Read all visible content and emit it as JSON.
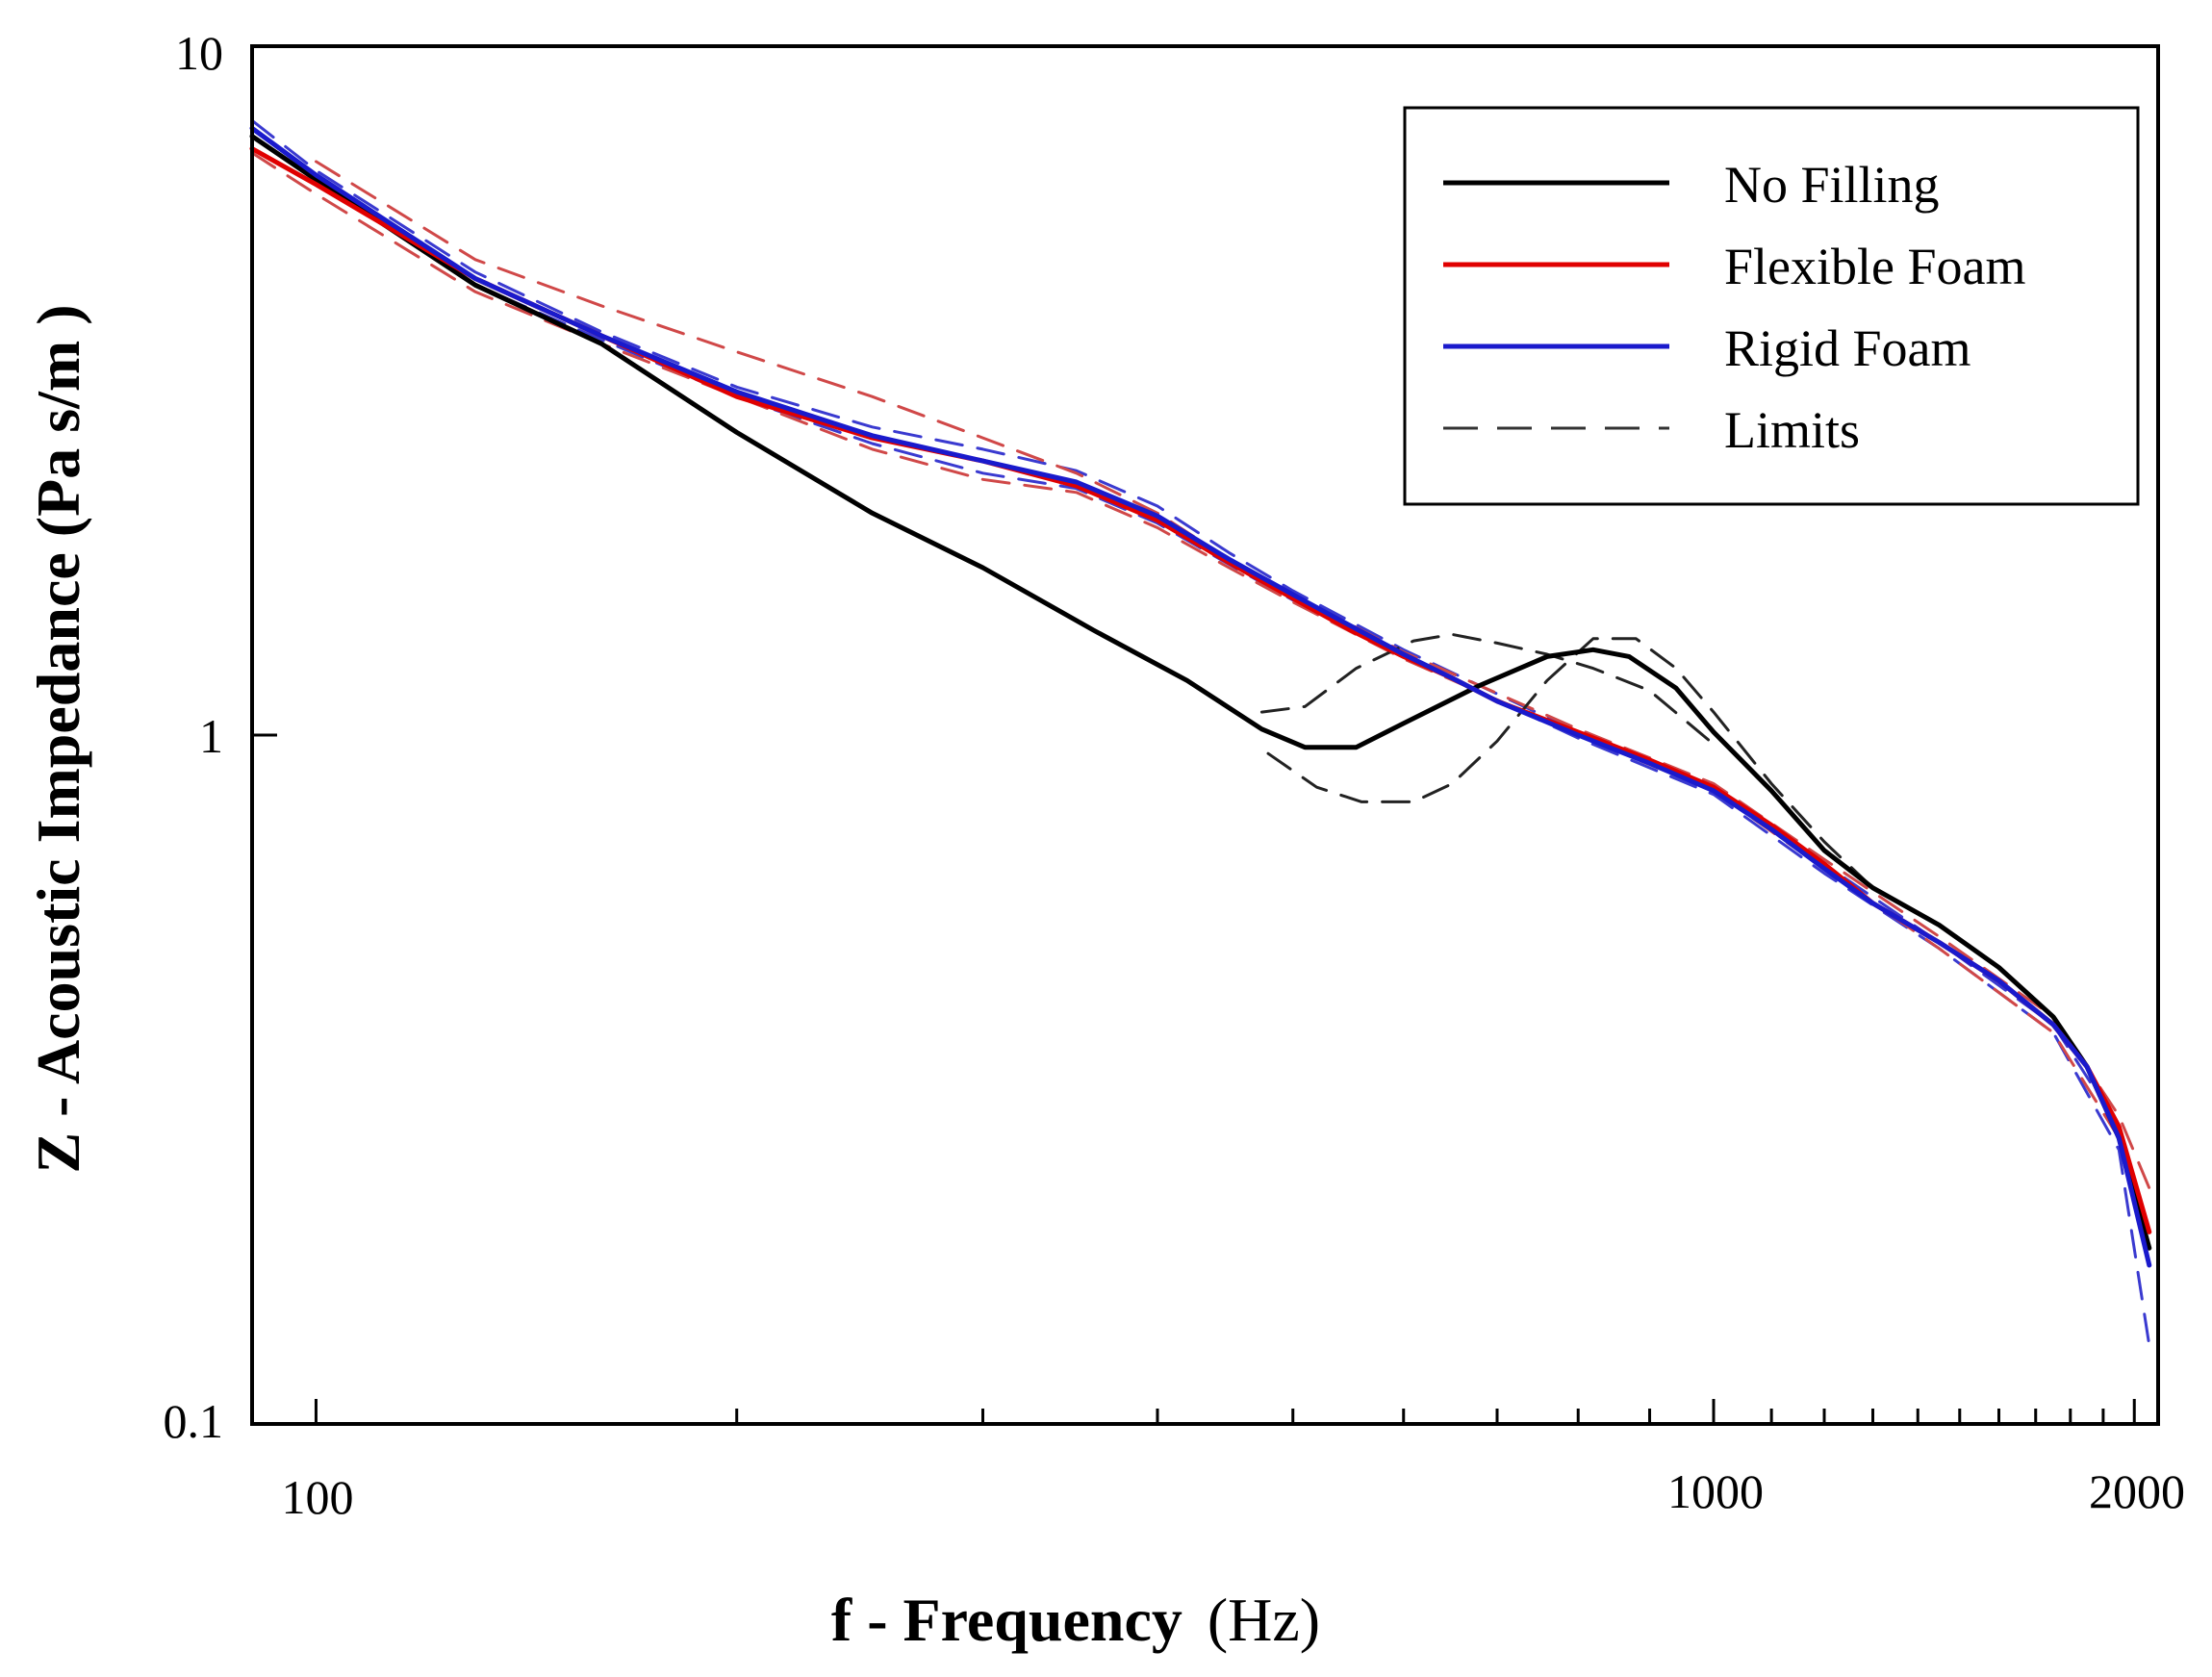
{
  "chart_data": {
    "type": "line",
    "title": "",
    "xlabel": "f - Frequency",
    "xlabel_unit": "(Hz)",
    "ylabel": "Z - Acoustic Impedance (Pa s/m )",
    "xscale": "log",
    "yscale": "log",
    "xlim": [
      90,
      2080
    ],
    "ylim": [
      0.1,
      10
    ],
    "x_tick_labels": [
      {
        "value": 100,
        "label": "100"
      },
      {
        "value": 1000,
        "label": "1000"
      },
      {
        "value": 2000,
        "label": "2000"
      }
    ],
    "x_minor_ticks": [
      200,
      300,
      400,
      500,
      600,
      700,
      800,
      900,
      1100,
      1200,
      1300,
      1400,
      1500,
      1600,
      1700,
      1800,
      1900
    ],
    "y_tick_labels": [
      {
        "value": 10,
        "label": "10"
      },
      {
        "value": 1,
        "label": "1"
      },
      {
        "value": 0.1,
        "label": "0.1"
      }
    ],
    "legend_position": "top-right",
    "legend": [
      {
        "name": "No Filling",
        "color": "#000000",
        "dash": "solid"
      },
      {
        "name": "Flexible Foam",
        "color": "#e00000",
        "dash": "solid"
      },
      {
        "name": "Rigid Foam",
        "color": "#1a1acc",
        "dash": "solid"
      },
      {
        "name": "Limits",
        "color": "#333333",
        "dash": "dashed"
      }
    ],
    "series": [
      {
        "name": "No Filling",
        "color": "#000000",
        "dash": "solid",
        "width": 5,
        "points": [
          [
            90,
            7.4
          ],
          [
            100,
            6.4
          ],
          [
            130,
            4.5
          ],
          [
            160,
            3.7
          ],
          [
            200,
            2.75
          ],
          [
            250,
            2.1
          ],
          [
            300,
            1.75
          ],
          [
            360,
            1.42
          ],
          [
            420,
            1.2
          ],
          [
            475,
            1.02
          ],
          [
            510,
            0.96
          ],
          [
            555,
            0.96
          ],
          [
            600,
            1.04
          ],
          [
            680,
            1.18
          ],
          [
            760,
            1.3
          ],
          [
            820,
            1.33
          ],
          [
            870,
            1.3
          ],
          [
            940,
            1.17
          ],
          [
            1000,
            1.01
          ],
          [
            1100,
            0.83
          ],
          [
            1200,
            0.68
          ],
          [
            1300,
            0.6
          ],
          [
            1450,
            0.53
          ],
          [
            1600,
            0.46
          ],
          [
            1750,
            0.39
          ],
          [
            1850,
            0.33
          ],
          [
            1950,
            0.26
          ],
          [
            2050,
            0.18
          ]
        ]
      },
      {
        "name": "Flexible Foam",
        "color": "#e00000",
        "dash": "solid",
        "width": 5,
        "points": [
          [
            90,
            7.1
          ],
          [
            100,
            6.3
          ],
          [
            130,
            4.6
          ],
          [
            160,
            3.8
          ],
          [
            200,
            3.1
          ],
          [
            250,
            2.7
          ],
          [
            300,
            2.5
          ],
          [
            350,
            2.3
          ],
          [
            400,
            2.05
          ],
          [
            450,
            1.78
          ],
          [
            500,
            1.58
          ],
          [
            550,
            1.42
          ],
          [
            600,
            1.3
          ],
          [
            650,
            1.21
          ],
          [
            700,
            1.12
          ],
          [
            800,
            1.01
          ],
          [
            900,
            0.92
          ],
          [
            1000,
            0.84
          ],
          [
            1100,
            0.74
          ],
          [
            1200,
            0.65
          ],
          [
            1300,
            0.57
          ],
          [
            1450,
            0.5
          ],
          [
            1600,
            0.44
          ],
          [
            1750,
            0.38
          ],
          [
            1850,
            0.33
          ],
          [
            1950,
            0.27
          ],
          [
            2050,
            0.19
          ]
        ]
      },
      {
        "name": "Rigid Foam",
        "color": "#1a1acc",
        "dash": "solid",
        "width": 5,
        "points": [
          [
            90,
            7.6
          ],
          [
            100,
            6.5
          ],
          [
            130,
            4.6
          ],
          [
            160,
            3.8
          ],
          [
            200,
            3.15
          ],
          [
            250,
            2.72
          ],
          [
            300,
            2.5
          ],
          [
            350,
            2.33
          ],
          [
            400,
            2.08
          ],
          [
            450,
            1.8
          ],
          [
            500,
            1.6
          ],
          [
            550,
            1.44
          ],
          [
            600,
            1.31
          ],
          [
            650,
            1.21
          ],
          [
            700,
            1.12
          ],
          [
            800,
            1.0
          ],
          [
            900,
            0.91
          ],
          [
            1000,
            0.83
          ],
          [
            1100,
            0.73
          ],
          [
            1200,
            0.64
          ],
          [
            1300,
            0.57
          ],
          [
            1450,
            0.5
          ],
          [
            1600,
            0.44
          ],
          [
            1750,
            0.38
          ],
          [
            1850,
            0.33
          ],
          [
            1950,
            0.26
          ],
          [
            2050,
            0.17
          ]
        ]
      },
      {
        "name": "No Filling upper limit",
        "color": "#222222",
        "dash": "dashed",
        "width": 3,
        "points": [
          [
            475,
            1.08
          ],
          [
            510,
            1.1
          ],
          [
            555,
            1.25
          ],
          [
            610,
            1.37
          ],
          [
            650,
            1.4
          ],
          [
            700,
            1.36
          ],
          [
            760,
            1.31
          ],
          [
            820,
            1.25
          ],
          [
            900,
            1.16
          ],
          [
            1000,
            0.97
          ]
        ]
      },
      {
        "name": "No Filling lower limit",
        "color": "#222222",
        "dash": "dashed",
        "width": 3,
        "points": [
          [
            480,
            0.94
          ],
          [
            520,
            0.84
          ],
          [
            560,
            0.8
          ],
          [
            610,
            0.8
          ],
          [
            650,
            0.85
          ],
          [
            700,
            0.98
          ],
          [
            760,
            1.2
          ],
          [
            820,
            1.38
          ],
          [
            880,
            1.38
          ],
          [
            940,
            1.25
          ],
          [
            1000,
            1.08
          ],
          [
            1100,
            0.85
          ],
          [
            1200,
            0.7
          ],
          [
            1300,
            0.6
          ]
        ]
      },
      {
        "name": "Flexible Foam upper limit",
        "color": "#d04848",
        "dash": "dashed",
        "width": 3,
        "points": [
          [
            100,
            6.8
          ],
          [
            130,
            4.9
          ],
          [
            160,
            4.2
          ],
          [
            200,
            3.6
          ],
          [
            250,
            3.1
          ],
          [
            300,
            2.7
          ],
          [
            350,
            2.4
          ],
          [
            400,
            2.1
          ],
          [
            450,
            1.8
          ],
          [
            500,
            1.6
          ],
          [
            600,
            1.32
          ],
          [
            800,
            1.02
          ],
          [
            1000,
            0.85
          ],
          [
            1200,
            0.66
          ],
          [
            1450,
            0.51
          ],
          [
            1750,
            0.39
          ],
          [
            1950,
            0.28
          ],
          [
            2050,
            0.22
          ]
        ]
      },
      {
        "name": "Flexible Foam lower limit",
        "color": "#d04848",
        "dash": "dashed",
        "width": 3,
        "points": [
          [
            90,
            7.0
          ],
          [
            100,
            6.1
          ],
          [
            130,
            4.4
          ],
          [
            160,
            3.7
          ],
          [
            200,
            3.1
          ],
          [
            250,
            2.6
          ],
          [
            300,
            2.35
          ],
          [
            350,
            2.25
          ],
          [
            400,
            2.0
          ],
          [
            450,
            1.75
          ],
          [
            500,
            1.56
          ],
          [
            600,
            1.29
          ],
          [
            800,
            1.0
          ],
          [
            1000,
            0.83
          ],
          [
            1200,
            0.64
          ],
          [
            1450,
            0.49
          ],
          [
            1750,
            0.37
          ],
          [
            1950,
            0.26
          ],
          [
            2050,
            0.18
          ]
        ]
      },
      {
        "name": "Rigid Foam upper limit",
        "color": "#3a3ad0",
        "dash": "dashed",
        "width": 3,
        "points": [
          [
            90,
            7.8
          ],
          [
            100,
            6.6
          ],
          [
            130,
            4.7
          ],
          [
            160,
            3.85
          ],
          [
            200,
            3.2
          ],
          [
            250,
            2.8
          ],
          [
            300,
            2.6
          ],
          [
            350,
            2.42
          ],
          [
            400,
            2.15
          ],
          [
            450,
            1.84
          ],
          [
            500,
            1.62
          ],
          [
            600,
            1.33
          ],
          [
            800,
            1.01
          ],
          [
            1000,
            0.84
          ],
          [
            1200,
            0.65
          ],
          [
            1450,
            0.5
          ],
          [
            1750,
            0.38
          ],
          [
            1950,
            0.27
          ],
          [
            2050,
            0.18
          ]
        ]
      },
      {
        "name": "Rigid Foam lower limit",
        "color": "#3a3ad0",
        "dash": "dashed",
        "width": 3,
        "points": [
          [
            90,
            7.4
          ],
          [
            100,
            6.4
          ],
          [
            130,
            4.5
          ],
          [
            160,
            3.75
          ],
          [
            200,
            3.1
          ],
          [
            250,
            2.65
          ],
          [
            300,
            2.4
          ],
          [
            350,
            2.28
          ],
          [
            400,
            2.03
          ],
          [
            450,
            1.77
          ],
          [
            500,
            1.57
          ],
          [
            600,
            1.3
          ],
          [
            800,
            0.99
          ],
          [
            1000,
            0.82
          ],
          [
            1200,
            0.63
          ],
          [
            1450,
            0.49
          ],
          [
            1750,
            0.37
          ],
          [
            1950,
            0.25
          ],
          [
            2050,
            0.13
          ]
        ]
      }
    ]
  }
}
